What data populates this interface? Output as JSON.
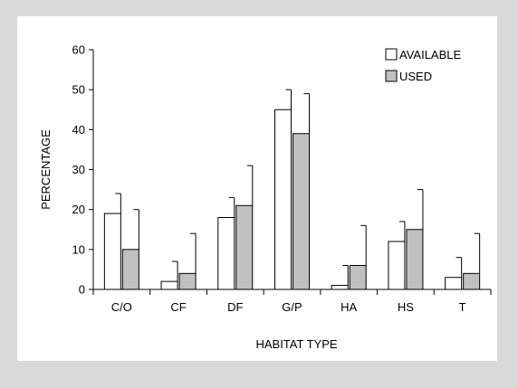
{
  "chart_data": {
    "type": "bar",
    "title": "",
    "xlabel": "HABITAT TYPE",
    "ylabel": "PERCENTAGE",
    "ylim": [
      0,
      60
    ],
    "yticks": [
      0,
      10,
      20,
      30,
      40,
      50,
      60
    ],
    "categories": [
      "C/O",
      "CF",
      "DF",
      "G/P",
      "HA",
      "HS",
      "T"
    ],
    "series": [
      {
        "name": "AVAILABLE",
        "color": "#ffffff",
        "values": [
          19,
          2,
          18,
          45,
          1,
          12,
          3
        ],
        "error_upper": [
          24,
          7,
          23,
          50,
          6,
          17,
          8
        ]
      },
      {
        "name": "USED",
        "color": "#c0c0c0",
        "values": [
          10,
          4,
          21,
          39,
          6,
          15,
          4
        ],
        "error_upper": [
          20,
          14,
          31,
          49,
          16,
          25,
          14
        ]
      }
    ],
    "legend_position": "top-right",
    "grid": false
  }
}
